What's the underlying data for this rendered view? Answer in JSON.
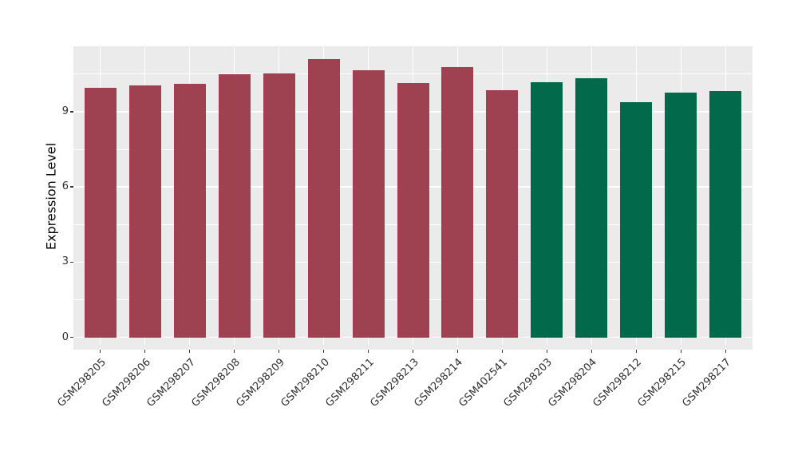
{
  "chart_data": {
    "type": "bar",
    "title": "",
    "xlabel": "",
    "ylabel": "Expression Level",
    "categories": [
      "GSM298205",
      "GSM298206",
      "GSM298207",
      "GSM298208",
      "GSM298209",
      "GSM298210",
      "GSM298211",
      "GSM298213",
      "GSM298214",
      "GSM402541",
      "GSM298203",
      "GSM298204",
      "GSM298212",
      "GSM298215",
      "GSM298217"
    ],
    "values": [
      9.96,
      10.06,
      10.11,
      10.49,
      10.54,
      11.11,
      10.65,
      10.15,
      10.78,
      9.87,
      10.19,
      10.35,
      9.39,
      9.77,
      9.84
    ],
    "groups": [
      0,
      0,
      0,
      0,
      0,
      0,
      0,
      0,
      0,
      0,
      1,
      1,
      1,
      1,
      1
    ],
    "group_colors": [
      "#9E4252",
      "#02694B"
    ],
    "yticks": [
      0,
      3,
      6,
      9
    ],
    "yticks_minor": [
      1.5,
      4.5,
      7.5,
      10.5
    ],
    "ylim": [
      -0.49,
      11.61
    ],
    "x_range": [
      0.4,
      15.6
    ],
    "x_tick_rotation_deg": 45,
    "legend": "none",
    "grid": true,
    "panel_background": "#EBEBEB",
    "gridline_color": "#FFFFFF"
  }
}
